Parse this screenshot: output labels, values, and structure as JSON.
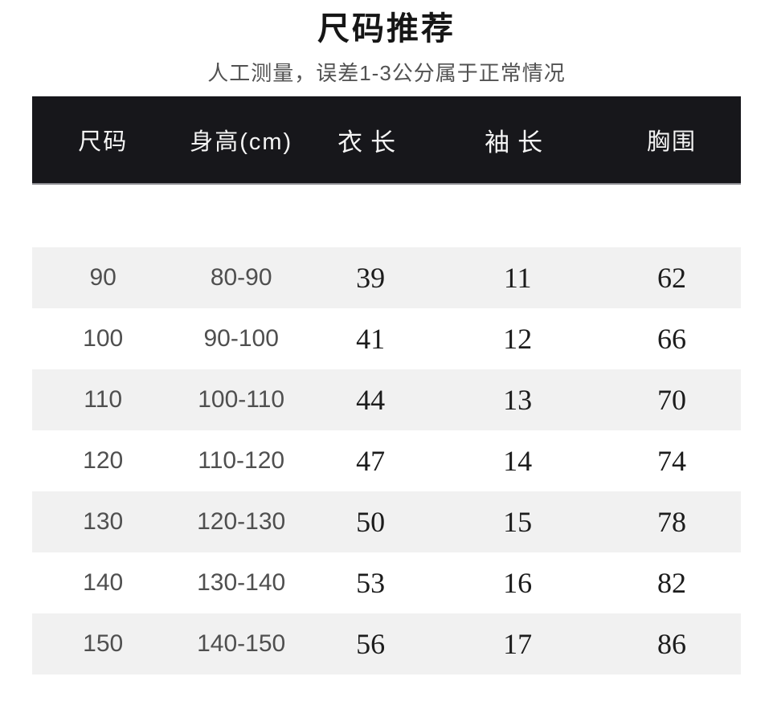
{
  "header": {
    "title": "尺码推荐",
    "subtitle": "人工测量，误差1-3公分属于正常情况"
  },
  "table": {
    "columns": [
      "尺码",
      "身高(cm)",
      "衣长",
      "袖长",
      "胸围"
    ],
    "rows": [
      [
        "90",
        "80-90",
        "39",
        "11",
        "62"
      ],
      [
        "100",
        "90-100",
        "41",
        "12",
        "66"
      ],
      [
        "110",
        "100-110",
        "44",
        "13",
        "70"
      ],
      [
        "120",
        "110-120",
        "47",
        "14",
        "74"
      ],
      [
        "130",
        "120-130",
        "50",
        "15",
        "78"
      ],
      [
        "140",
        "130-140",
        "53",
        "16",
        "82"
      ],
      [
        "150",
        "140-150",
        "56",
        "17",
        "86"
      ]
    ]
  },
  "colors": {
    "header_bar": "#17171b",
    "row_alt": "#f1f1f1",
    "title_color": "#161616",
    "subtitle_color": "#525252",
    "header_text": "#f5f5f5",
    "cell_secondary": "#4f4f4f",
    "cell_primary": "#1c1c1c"
  }
}
